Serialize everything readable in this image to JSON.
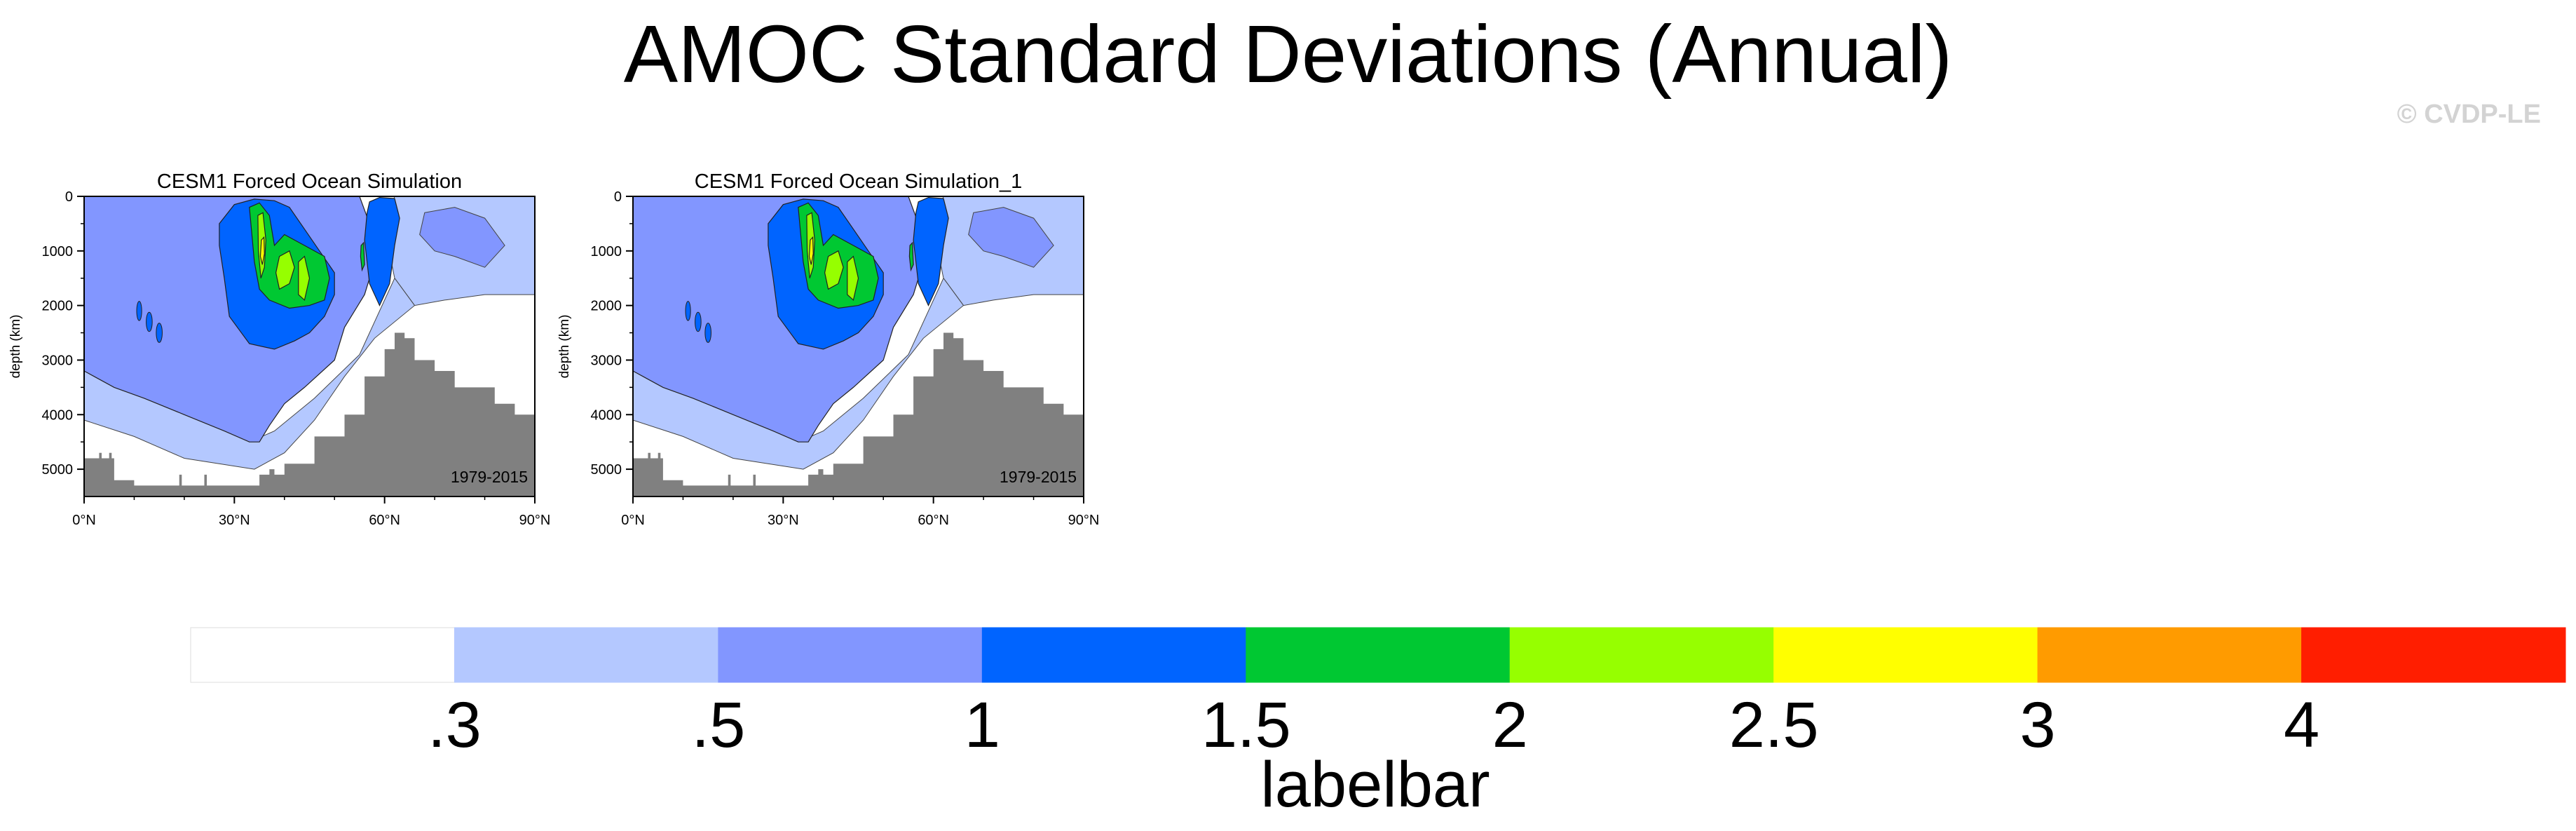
{
  "title": "AMOC Standard Deviations (Annual)",
  "watermark": "© CVDP-LE",
  "colorbar": {
    "title": "labelbar",
    "labels": [
      ".3",
      ".5",
      "1",
      "1.5",
      "2",
      "2.5",
      "3",
      "4"
    ],
    "colors": [
      "#ffffff",
      "#b4c8ff",
      "#8296ff",
      "#0064ff",
      "#00c832",
      "#96ff00",
      "#ffff00",
      "#ff9b00",
      "#ff1e00"
    ]
  },
  "chart_data": [
    {
      "type": "contour",
      "title": "CESM1 Forced Ocean Simulation",
      "period": "1979-2015",
      "ylabel": "depth (km)",
      "xticks": [
        "0°N",
        "30°N",
        "60°N",
        "90°N"
      ],
      "yticks": [
        "0",
        "1000",
        "2000",
        "3000",
        "4000",
        "5000"
      ],
      "xlim": [
        0,
        90
      ],
      "ylim": [
        5500,
        0
      ],
      "levels": [
        0.3,
        0.5,
        1,
        1.5,
        2,
        2.5,
        3,
        4
      ],
      "bathymetry_depth": [
        [
          0,
          4800
        ],
        [
          3,
          4800
        ],
        [
          6,
          5200
        ],
        [
          10,
          5300
        ],
        [
          16,
          5300
        ],
        [
          20,
          5300
        ],
        [
          26,
          5300
        ],
        [
          35,
          5100
        ],
        [
          40,
          4900
        ],
        [
          46,
          4400
        ],
        [
          52,
          4000
        ],
        [
          56,
          3300
        ],
        [
          60,
          2800
        ],
        [
          62,
          2500
        ],
        [
          64,
          2600
        ],
        [
          66,
          3000
        ],
        [
          70,
          3200
        ],
        [
          74,
          3500
        ],
        [
          82,
          3800
        ],
        [
          86,
          4000
        ],
        [
          90,
          4000
        ]
      ]
    },
    {
      "type": "contour",
      "title": "CESM1 Forced Ocean Simulation_1",
      "period": "1979-2015",
      "ylabel": "depth (km)",
      "xticks": [
        "0°N",
        "30°N",
        "60°N",
        "90°N"
      ],
      "yticks": [
        "0",
        "1000",
        "2000",
        "3000",
        "4000",
        "5000"
      ],
      "xlim": [
        0,
        90
      ],
      "ylim": [
        5500,
        0
      ],
      "levels": [
        0.3,
        0.5,
        1,
        1.5,
        2,
        2.5,
        3,
        4
      ],
      "bathymetry_depth": [
        [
          0,
          4800
        ],
        [
          3,
          4800
        ],
        [
          6,
          5200
        ],
        [
          10,
          5300
        ],
        [
          16,
          5300
        ],
        [
          20,
          5300
        ],
        [
          26,
          5300
        ],
        [
          35,
          5100
        ],
        [
          40,
          4900
        ],
        [
          46,
          4400
        ],
        [
          52,
          4000
        ],
        [
          56,
          3300
        ],
        [
          60,
          2800
        ],
        [
          62,
          2500
        ],
        [
          64,
          2600
        ],
        [
          66,
          3000
        ],
        [
          70,
          3200
        ],
        [
          74,
          3500
        ],
        [
          82,
          3800
        ],
        [
          86,
          4000
        ],
        [
          90,
          4000
        ]
      ]
    }
  ]
}
